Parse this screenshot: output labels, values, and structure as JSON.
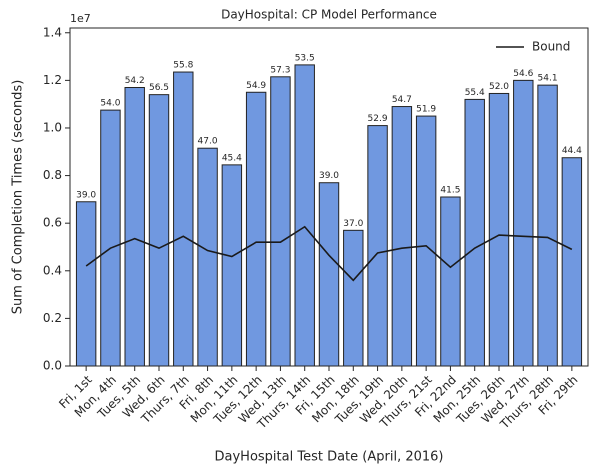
{
  "chart_data": {
    "type": "bar",
    "title": "DayHospital: CP Model Performance",
    "x_label": "DayHospital Test Date (April, 2016)",
    "y_label": "Sum of Completion Times (seconds)",
    "y_offset_label": "1e7",
    "categories": [
      "Fri, 1st",
      "Mon, 4th",
      "Tues, 5th",
      "Wed, 6th",
      "Thurs, 7th",
      "Fri, 8th",
      "Mon, 11th",
      "Tues, 12th",
      "Wed, 13th",
      "Thurs, 14th",
      "Fri, 15th",
      "Mon, 18th",
      "Tues, 19th",
      "Wed, 20th",
      "Thurs, 21st",
      "Fri, 22nd",
      "Mon, 25th",
      "Tues, 26th",
      "Wed, 27th",
      "Thurs, 28th",
      "Fri, 29th"
    ],
    "values": [
      0.69,
      1.075,
      1.17,
      1.14,
      1.235,
      0.915,
      0.845,
      1.15,
      1.215,
      1.265,
      0.77,
      0.57,
      1.01,
      1.09,
      1.05,
      0.71,
      1.12,
      1.145,
      1.2,
      1.18,
      0.875
    ],
    "bar_labels": [
      "39.0",
      "54.0",
      "54.2",
      "56.5",
      "55.8",
      "47.0",
      "45.4",
      "54.9",
      "57.3",
      "53.5",
      "39.0",
      "37.0",
      "52.9",
      "54.7",
      "51.9",
      "41.5",
      "55.4",
      "52.0",
      "54.6",
      "54.1",
      "44.4"
    ],
    "color": "#7098e0",
    "line": {
      "name": "Bound",
      "color": "#1a1a1a",
      "values": [
        0.42,
        0.495,
        0.535,
        0.495,
        0.545,
        0.485,
        0.46,
        0.52,
        0.52,
        0.585,
        0.465,
        0.36,
        0.475,
        0.495,
        0.505,
        0.415,
        0.495,
        0.55,
        0.545,
        0.54,
        0.49
      ]
    },
    "legend": "upper right",
    "ylim": [
      0,
      1.42
    ],
    "yticks": [
      {
        "value": 0,
        "label": "0.0"
      },
      0.2,
      0.4,
      0.6,
      0.8,
      {
        "value": 1,
        "label": "1.0"
      },
      1.2,
      1.4
    ]
  }
}
